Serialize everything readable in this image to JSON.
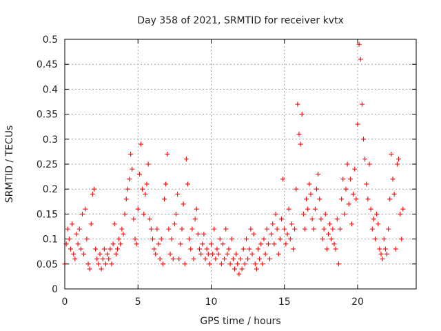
{
  "chart_data": {
    "type": "scatter",
    "title": "Day 358 of 2021, SRMTID for receiver kvtx",
    "xlabel": "GPS time / hours",
    "ylabel": "SRMTID / TECUs",
    "xlim": [
      0,
      24
    ],
    "ylim": [
      0,
      0.5
    ],
    "x_ticks": [
      0,
      5,
      10,
      15,
      20
    ],
    "y_ticks": [
      0,
      0.05,
      0.1,
      0.15,
      0.2,
      0.25,
      0.3,
      0.35,
      0.4,
      0.45,
      0.5
    ],
    "x_tick_labels": [
      "0",
      "5",
      "10",
      "15",
      "20"
    ],
    "y_tick_labels": [
      "0",
      "0.05",
      "0.1",
      "0.15",
      "0.2",
      "0.25",
      "0.3",
      "0.35",
      "0.4",
      "0.45",
      "0.5"
    ],
    "grid": true,
    "marker": "+",
    "series": [
      {
        "name": "SRMTID",
        "color": "#ff0000",
        "points": [
          [
            0.0,
            0.05
          ],
          [
            0.1,
            0.09
          ],
          [
            0.2,
            0.12
          ],
          [
            0.3,
            0.1
          ],
          [
            0.4,
            0.08
          ],
          [
            0.5,
            0.13
          ],
          [
            0.6,
            0.07
          ],
          [
            0.7,
            0.06
          ],
          [
            0.8,
            0.11
          ],
          [
            0.9,
            0.09
          ],
          [
            1.0,
            0.12
          ],
          [
            1.1,
            0.08
          ],
          [
            1.2,
            0.15
          ],
          [
            1.3,
            0.07
          ],
          [
            1.4,
            0.16
          ],
          [
            1.5,
            0.1
          ],
          [
            1.6,
            0.05
          ],
          [
            1.7,
            0.04
          ],
          [
            1.8,
            0.13
          ],
          [
            1.9,
            0.19
          ],
          [
            2.0,
            0.2
          ],
          [
            2.1,
            0.08
          ],
          [
            2.2,
            0.06
          ],
          [
            2.3,
            0.05
          ],
          [
            2.4,
            0.07
          ],
          [
            2.5,
            0.04
          ],
          [
            2.6,
            0.06
          ],
          [
            2.7,
            0.08
          ],
          [
            2.8,
            0.05
          ],
          [
            2.9,
            0.07
          ],
          [
            3.0,
            0.06
          ],
          [
            3.1,
            0.08
          ],
          [
            3.2,
            0.05
          ],
          [
            3.3,
            0.09
          ],
          [
            3.4,
            0.13
          ],
          [
            3.5,
            0.07
          ],
          [
            3.6,
            0.08
          ],
          [
            3.7,
            0.1
          ],
          [
            3.8,
            0.09
          ],
          [
            3.9,
            0.12
          ],
          [
            4.0,
            0.11
          ],
          [
            4.1,
            0.15
          ],
          [
            4.2,
            0.18
          ],
          [
            4.3,
            0.2
          ],
          [
            4.4,
            0.22
          ],
          [
            4.5,
            0.27
          ],
          [
            4.6,
            0.24
          ],
          [
            4.7,
            0.14
          ],
          [
            4.8,
            0.1
          ],
          [
            4.9,
            0.09
          ],
          [
            5.0,
            0.16
          ],
          [
            5.1,
            0.23
          ],
          [
            5.2,
            0.29
          ],
          [
            5.3,
            0.2
          ],
          [
            5.4,
            0.15
          ],
          [
            5.5,
            0.19
          ],
          [
            5.6,
            0.21
          ],
          [
            5.7,
            0.25
          ],
          [
            5.8,
            0.14
          ],
          [
            5.9,
            0.12
          ],
          [
            6.0,
            0.1
          ],
          [
            6.1,
            0.08
          ],
          [
            6.2,
            0.07
          ],
          [
            6.3,
            0.12
          ],
          [
            6.4,
            0.09
          ],
          [
            6.5,
            0.06
          ],
          [
            6.6,
            0.1
          ],
          [
            6.7,
            0.05
          ],
          [
            6.8,
            0.18
          ],
          [
            6.9,
            0.21
          ],
          [
            7.0,
            0.27
          ],
          [
            7.1,
            0.12
          ],
          [
            7.2,
            0.07
          ],
          [
            7.3,
            0.1
          ],
          [
            7.4,
            0.06
          ],
          [
            7.5,
            0.13
          ],
          [
            7.6,
            0.15
          ],
          [
            7.7,
            0.19
          ],
          [
            7.8,
            0.06
          ],
          [
            7.9,
            0.09
          ],
          [
            8.0,
            0.12
          ],
          [
            8.1,
            0.17
          ],
          [
            8.2,
            0.05
          ],
          [
            8.3,
            0.26
          ],
          [
            8.4,
            0.21
          ],
          [
            8.5,
            0.1
          ],
          [
            8.6,
            0.08
          ],
          [
            8.7,
            0.12
          ],
          [
            8.8,
            0.06
          ],
          [
            8.9,
            0.14
          ],
          [
            9.0,
            0.16
          ],
          [
            9.1,
            0.11
          ],
          [
            9.2,
            0.08
          ],
          [
            9.3,
            0.07
          ],
          [
            9.4,
            0.09
          ],
          [
            9.5,
            0.11
          ],
          [
            9.6,
            0.06
          ],
          [
            9.7,
            0.08
          ],
          [
            9.8,
            0.07
          ],
          [
            9.9,
            0.05
          ],
          [
            10.0,
            0.09
          ],
          [
            10.1,
            0.07
          ],
          [
            10.2,
            0.12
          ],
          [
            10.3,
            0.06
          ],
          [
            10.4,
            0.08
          ],
          [
            10.5,
            0.07
          ],
          [
            10.6,
            0.1
          ],
          [
            10.7,
            0.05
          ],
          [
            10.8,
            0.09
          ],
          [
            10.9,
            0.06
          ],
          [
            11.0,
            0.12
          ],
          [
            11.1,
            0.07
          ],
          [
            11.2,
            0.08
          ],
          [
            11.3,
            0.05
          ],
          [
            11.4,
            0.1
          ],
          [
            11.5,
            0.06
          ],
          [
            11.6,
            0.04
          ],
          [
            11.7,
            0.07
          ],
          [
            11.8,
            0.05
          ],
          [
            11.9,
            0.03
          ],
          [
            12.0,
            0.06
          ],
          [
            12.1,
            0.04
          ],
          [
            12.2,
            0.08
          ],
          [
            12.3,
            0.05
          ],
          [
            12.4,
            0.1
          ],
          [
            12.5,
            0.06
          ],
          [
            12.6,
            0.08
          ],
          [
            12.7,
            0.12
          ],
          [
            12.8,
            0.07
          ],
          [
            12.9,
            0.11
          ],
          [
            13.0,
            0.05
          ],
          [
            13.1,
            0.04
          ],
          [
            13.2,
            0.08
          ],
          [
            13.3,
            0.06
          ],
          [
            13.4,
            0.09
          ],
          [
            13.5,
            0.05
          ],
          [
            13.6,
            0.1
          ],
          [
            13.7,
            0.07
          ],
          [
            13.8,
            0.12
          ],
          [
            13.9,
            0.09
          ],
          [
            14.0,
            0.06
          ],
          [
            14.1,
            0.11
          ],
          [
            14.2,
            0.13
          ],
          [
            14.3,
            0.09
          ],
          [
            14.4,
            0.15
          ],
          [
            14.5,
            0.12
          ],
          [
            14.6,
            0.07
          ],
          [
            14.7,
            0.1
          ],
          [
            14.8,
            0.14
          ],
          [
            14.9,
            0.22
          ],
          [
            15.0,
            0.12
          ],
          [
            15.1,
            0.09
          ],
          [
            15.2,
            0.11
          ],
          [
            15.3,
            0.16
          ],
          [
            15.4,
            0.1
          ],
          [
            15.5,
            0.13
          ],
          [
            15.6,
            0.08
          ],
          [
            15.7,
            0.12
          ],
          [
            15.8,
            0.2
          ],
          [
            15.9,
            0.37
          ],
          [
            16.0,
            0.31
          ],
          [
            16.1,
            0.29
          ],
          [
            16.2,
            0.35
          ],
          [
            16.3,
            0.15
          ],
          [
            16.4,
            0.12
          ],
          [
            16.5,
            0.18
          ],
          [
            16.6,
            0.16
          ],
          [
            16.7,
            0.21
          ],
          [
            16.8,
            0.19
          ],
          [
            16.9,
            0.14
          ],
          [
            17.0,
            0.12
          ],
          [
            17.1,
            0.16
          ],
          [
            17.2,
            0.2
          ],
          [
            17.3,
            0.23
          ],
          [
            17.4,
            0.18
          ],
          [
            17.5,
            0.14
          ],
          [
            17.6,
            0.1
          ],
          [
            17.7,
            0.12
          ],
          [
            17.8,
            0.15
          ],
          [
            17.9,
            0.08
          ],
          [
            18.0,
            0.11
          ],
          [
            18.1,
            0.13
          ],
          [
            18.2,
            0.1
          ],
          [
            18.3,
            0.12
          ],
          [
            18.4,
            0.09
          ],
          [
            18.5,
            0.08
          ],
          [
            18.6,
            0.14
          ],
          [
            18.7,
            0.05
          ],
          [
            18.8,
            0.12
          ],
          [
            18.9,
            0.18
          ],
          [
            19.0,
            0.22
          ],
          [
            19.1,
            0.15
          ],
          [
            19.2,
            0.2
          ],
          [
            19.3,
            0.25
          ],
          [
            19.4,
            0.17
          ],
          [
            19.5,
            0.22
          ],
          [
            19.6,
            0.13
          ],
          [
            19.7,
            0.19
          ],
          [
            19.8,
            0.24
          ],
          [
            19.9,
            0.18
          ],
          [
            20.0,
            0.33
          ],
          [
            20.1,
            0.49
          ],
          [
            20.2,
            0.46
          ],
          [
            20.3,
            0.37
          ],
          [
            20.4,
            0.3
          ],
          [
            20.5,
            0.26
          ],
          [
            20.6,
            0.21
          ],
          [
            20.7,
            0.18
          ],
          [
            20.8,
            0.25
          ],
          [
            20.9,
            0.16
          ],
          [
            21.0,
            0.12
          ],
          [
            21.1,
            0.14
          ],
          [
            21.2,
            0.1
          ],
          [
            21.3,
            0.15
          ],
          [
            21.4,
            0.13
          ],
          [
            21.5,
            0.08
          ],
          [
            21.6,
            0.07
          ],
          [
            21.7,
            0.06
          ],
          [
            21.8,
            0.1
          ],
          [
            21.9,
            0.08
          ],
          [
            22.0,
            0.07
          ],
          [
            22.1,
            0.12
          ],
          [
            22.2,
            0.18
          ],
          [
            22.3,
            0.27
          ],
          [
            22.4,
            0.22
          ],
          [
            22.5,
            0.19
          ],
          [
            22.6,
            0.08
          ],
          [
            22.7,
            0.25
          ],
          [
            22.8,
            0.26
          ],
          [
            22.9,
            0.15
          ],
          [
            23.0,
            0.1
          ],
          [
            23.1,
            0.16
          ]
        ]
      }
    ]
  }
}
